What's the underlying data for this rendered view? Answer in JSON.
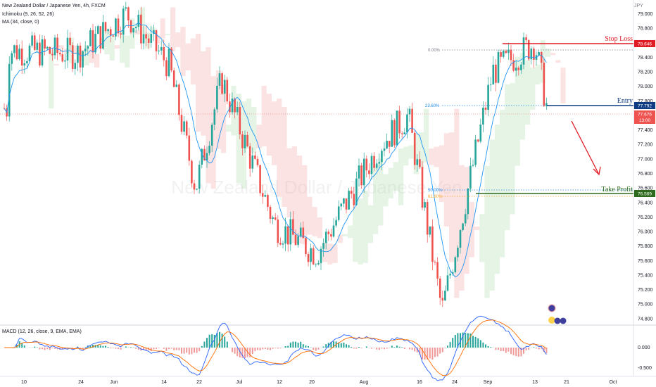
{
  "header": {
    "symbol_line": "New Zealand Dollar / Japanese Yen, 4h, FXCM",
    "ichimoku_line": "Ichimoku (9, 26, 52, 26)",
    "ma_line": "MA (34, close, 0)",
    "currency": "JPY"
  },
  "watermark": "New Zealand Dollar / Japanese Yen",
  "levels": {
    "stop_loss": {
      "label": "Stop Loss",
      "price": "78.646",
      "fib": "0.00%"
    },
    "entry": {
      "label": "Entry",
      "price": "77.792",
      "fib": "23.60%"
    },
    "take_profit": {
      "label": "Take Profit",
      "price": "76.569",
      "fib": "50.00%"
    },
    "fib_618": "61.80%"
  },
  "last_price": {
    "price": "77.676",
    "countdown": "13:00"
  },
  "price_axis_ticks": [
    "79.000",
    "78.800",
    "78.600",
    "78.400",
    "78.200",
    "78.000",
    "77.800",
    "77.600",
    "77.400",
    "77.200",
    "77.000",
    "76.800",
    "76.600",
    "76.400",
    "76.200",
    "76.000",
    "75.800",
    "75.600",
    "75.400",
    "75.200",
    "75.000",
    "74.800"
  ],
  "macd": {
    "label": "MACD (12, 26, close, 9, EMA, EMA)",
    "ticks": [
      "0.000",
      "-0.500"
    ]
  },
  "time_axis": [
    "10",
    "24",
    "Jun",
    "14",
    "22",
    "Jul",
    "12",
    "20",
    "Aug",
    "16",
    "24",
    "Sep",
    "13",
    "21",
    "Oct"
  ],
  "colors": {
    "stop": "#e01b24",
    "entry": "#0d3b84",
    "take_profit": "#2d6a1c",
    "bull": "#26a69a",
    "bear": "#ef5350",
    "ma": "#2196f3"
  },
  "chart_data": {
    "type": "candlestick",
    "title": "New Zealand Dollar / Japanese Yen, 4h, FXCM",
    "ylim": [
      74.75,
      79.15
    ],
    "x_ticks": [
      "10",
      "24",
      "Jun",
      "14",
      "22",
      "Jul",
      "12",
      "20",
      "Aug",
      "16",
      "24",
      "Sep",
      "13",
      "21",
      "Oct"
    ],
    "close_path": [
      {
        "x": "10",
        "y": 78.5
      },
      {
        "x": "24",
        "y": 78.45
      },
      {
        "x": "Jun",
        "y": 79.0
      },
      {
        "x": "14",
        "y": 78.3
      },
      {
        "x": "22",
        "y": 76.6
      },
      {
        "x": "Jul",
        "y": 78.1
      },
      {
        "x": "12",
        "y": 76.1
      },
      {
        "x": "20",
        "y": 75.7
      },
      {
        "x": "Aug",
        "y": 77.2
      },
      {
        "x": "16",
        "y": 77.6
      },
      {
        "x": "24",
        "y": 74.9
      },
      {
        "x": "Sep",
        "y": 78.2
      },
      {
        "x": "13",
        "y": 78.6
      },
      {
        "x": "13",
        "y": 77.7
      }
    ],
    "annotations": [
      {
        "label": "Stop Loss",
        "y": 78.646
      },
      {
        "label": "Entry",
        "y": 77.792
      },
      {
        "label": "Take Profit",
        "y": 76.569
      }
    ],
    "last_price": 77.676,
    "macd_ticks": [
      "0.000",
      "-0.500"
    ]
  }
}
